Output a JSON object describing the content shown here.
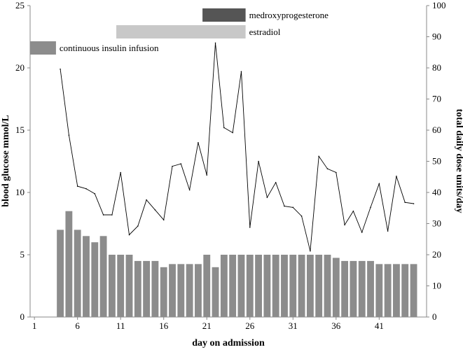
{
  "chart_data": {
    "type": "bar+line",
    "xlabel": "day on admission",
    "ylabel_left": "blood glucose mmol/L",
    "ylabel_right": "total daily dose units/day",
    "ylim_left": [
      0,
      25
    ],
    "ylim_right": [
      0,
      100
    ],
    "x_range": [
      1,
      45
    ],
    "x_ticks": [
      1,
      6,
      11,
      16,
      21,
      26,
      31,
      36,
      41
    ],
    "y_ticks_left": [
      0,
      5,
      10,
      15,
      20,
      25
    ],
    "y_ticks_right": [
      0,
      10,
      20,
      30,
      40,
      50,
      60,
      70,
      80,
      90,
      100
    ],
    "grid": false,
    "series": [
      {
        "name": "total daily dose units/day",
        "kind": "bar",
        "axis": "right",
        "color": "#8c8c8c",
        "x": [
          4,
          5,
          6,
          7,
          8,
          9,
          10,
          11,
          12,
          13,
          14,
          15,
          16,
          17,
          18,
          19,
          20,
          21,
          22,
          23,
          24,
          25,
          26,
          27,
          28,
          29,
          30,
          31,
          32,
          33,
          34,
          35,
          36,
          37,
          38,
          39,
          40,
          41,
          42,
          43,
          44,
          45
        ],
        "values": [
          28,
          34,
          28,
          26,
          24,
          26,
          20,
          20,
          20,
          18,
          18,
          18,
          16,
          17,
          17,
          17,
          17,
          20,
          16,
          20,
          20,
          20,
          20,
          20,
          20,
          20,
          20,
          20,
          20,
          20,
          20,
          20,
          19,
          18,
          18,
          18,
          18,
          17,
          17,
          17,
          17,
          17
        ]
      },
      {
        "name": "blood glucose mmol/L",
        "kind": "line",
        "axis": "left",
        "color": "#000000",
        "x": [
          4,
          5,
          6,
          7,
          8,
          9,
          10,
          11,
          12,
          13,
          14,
          15,
          16,
          17,
          18,
          19,
          20,
          21,
          22,
          23,
          24,
          25,
          26,
          27,
          28,
          29,
          30,
          31,
          32,
          33,
          34,
          35,
          36,
          37,
          38,
          39,
          40,
          41,
          42,
          43,
          44,
          45
        ],
        "values": [
          19.9,
          14.6,
          10.5,
          10.3,
          9.9,
          8.2,
          8.2,
          11.6,
          6.6,
          7.3,
          9.4,
          8.6,
          7.8,
          12.1,
          12.3,
          10.2,
          14.0,
          11.4,
          22.0,
          15.2,
          14.8,
          19.7,
          7.2,
          12.5,
          9.6,
          10.8,
          8.9,
          8.8,
          8.1,
          5.3,
          12.9,
          11.9,
          11.6,
          7.4,
          8.5,
          6.8,
          8.8,
          10.7,
          6.9,
          11.3,
          9.2,
          9.1
        ]
      }
    ],
    "annotations": [
      {
        "label": "medroxyprogesterone",
        "x_start": 21,
        "x_end": 25,
        "color": "#555555"
      },
      {
        "label": "estradiol",
        "x_start": 11,
        "x_end": 25,
        "color": "#c8c8c8"
      },
      {
        "label": "continuous insulin infusion",
        "x_start": 1,
        "x_end": 3,
        "color": "#8c8c8c"
      }
    ]
  }
}
